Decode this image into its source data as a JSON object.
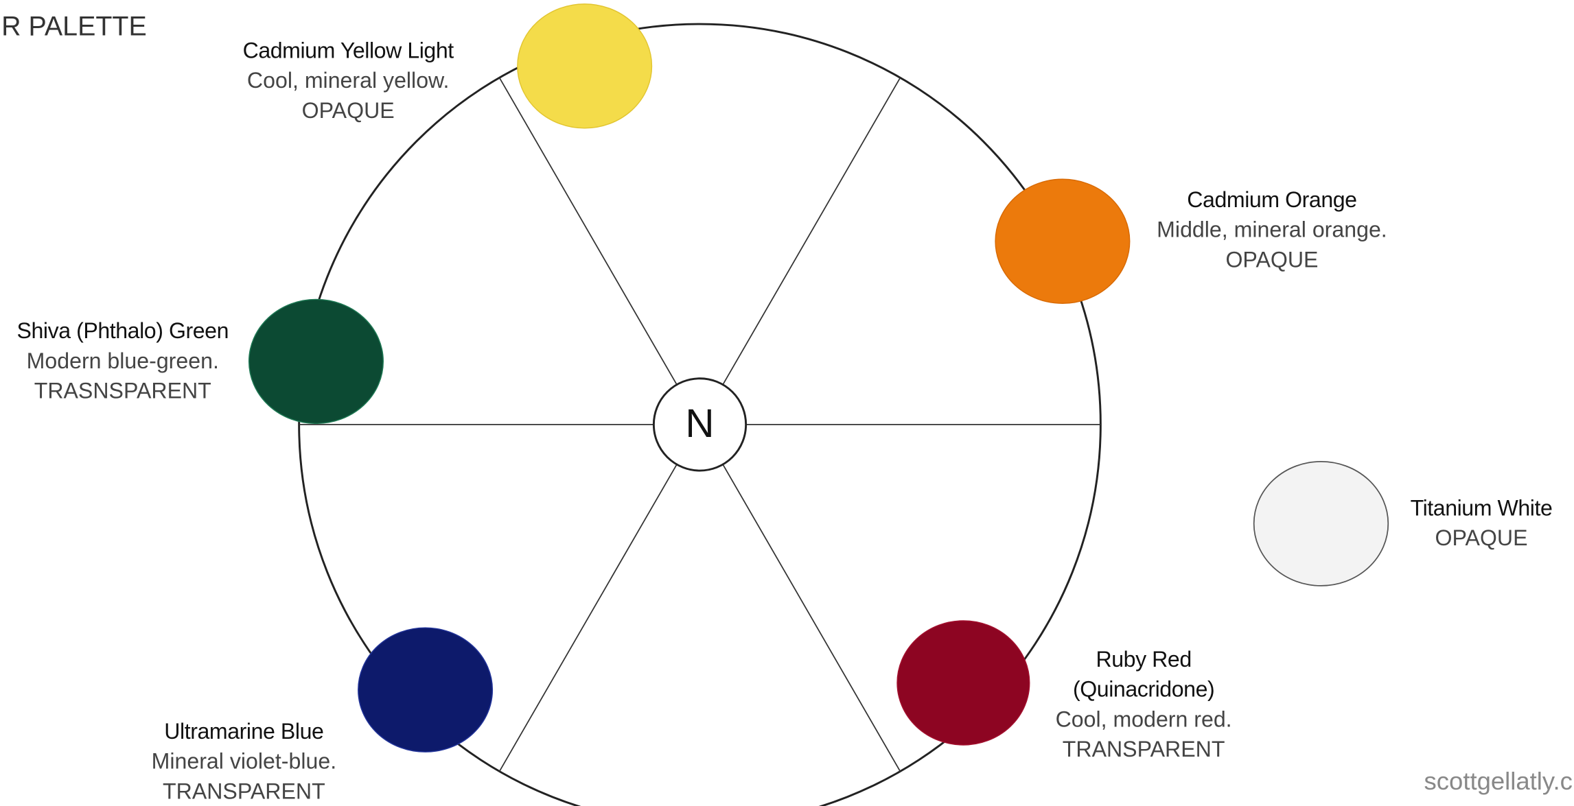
{
  "header": {
    "title": "R PALETTE"
  },
  "center": {
    "label": "N"
  },
  "swatches": [
    {
      "name": [
        "Cadmium Yellow Light"
      ],
      "description": "Cool, mineral yellow.",
      "property": "OPAQUE"
    },
    {
      "name": [
        "Cadmium Orange"
      ],
      "description": "Middle, mineral orange.",
      "property": "OPAQUE"
    },
    {
      "name": [
        "Shiva (Phthalo) Green"
      ],
      "description": "Modern blue-green.",
      "property": "TRASNSPARENT"
    },
    {
      "name": [
        "Ultramarine Blue"
      ],
      "description": "Mineral violet-blue.",
      "property": "TRANSPARENT"
    },
    {
      "name": [
        "Ruby Red",
        "(Quinacridone)"
      ],
      "description": "Cool, modern red.",
      "property": "TRANSPARENT"
    },
    {
      "name": [
        "Titanium White"
      ],
      "property": "OPAQUE"
    }
  ],
  "footer": {
    "credit": "scottgellatly.c"
  }
}
